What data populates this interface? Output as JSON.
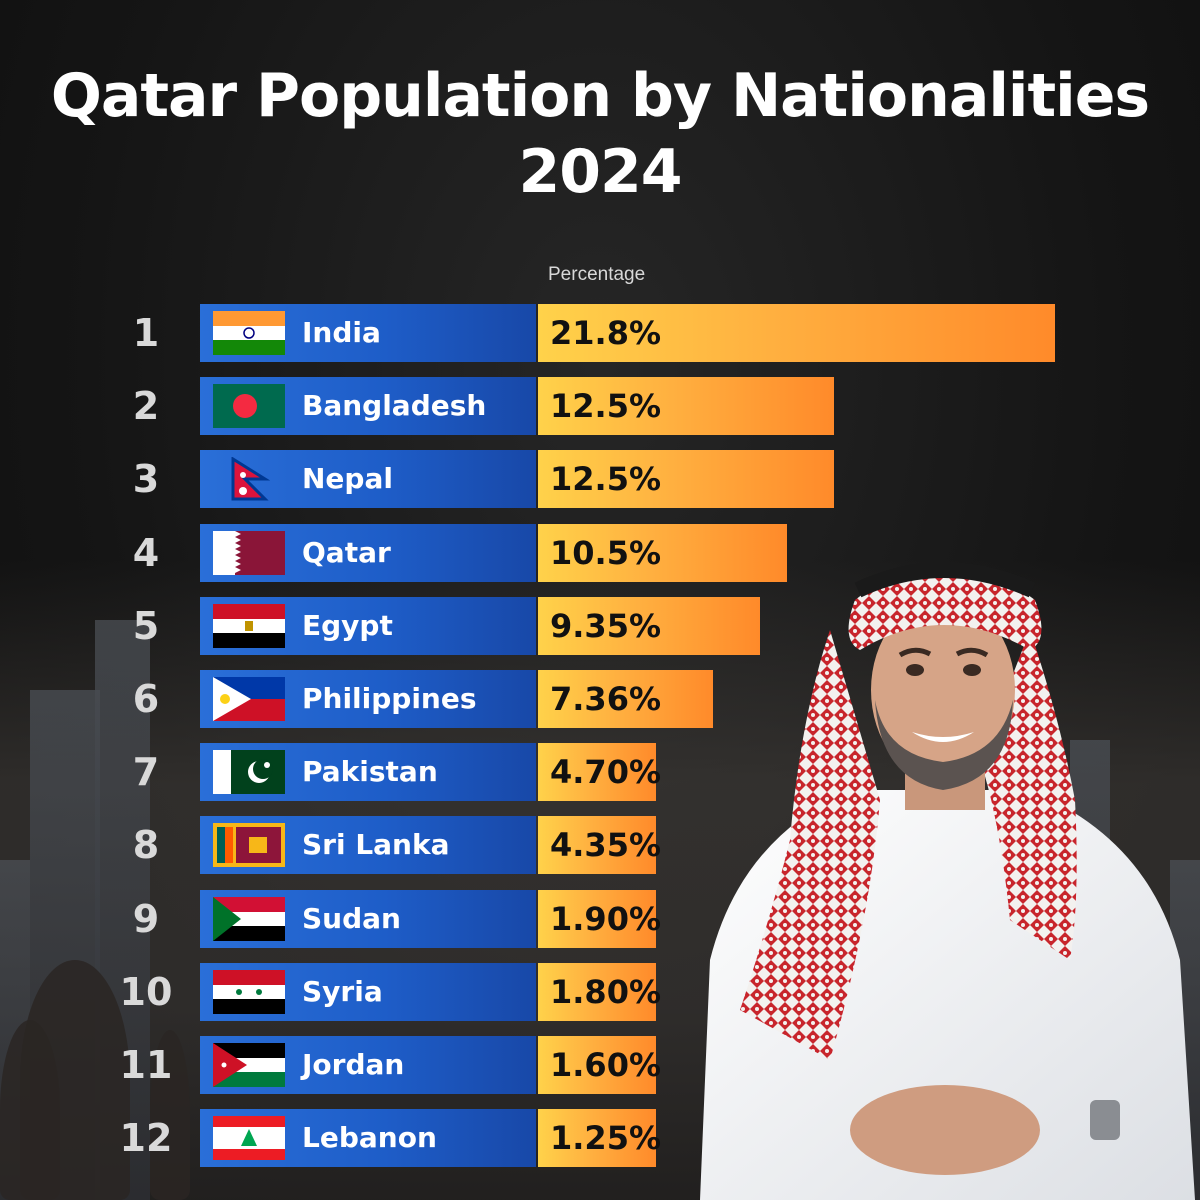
{
  "chart_data": {
    "type": "bar",
    "orientation": "horizontal",
    "title": "Qatar Population by Nationalities 2024",
    "value_label": "Percentage",
    "unit": "%",
    "xlim": [
      0,
      21.8
    ],
    "grid": false,
    "legend": "none",
    "ranks": [
      "1",
      "2",
      "3",
      "4",
      "5",
      "6",
      "7",
      "8",
      "9",
      "10",
      "11",
      "12"
    ],
    "categories": [
      "India",
      "Bangladesh",
      "Nepal",
      "Qatar",
      "Egypt",
      "Philippines",
      "Pakistan",
      "Sri Lanka",
      "Sudan",
      "Syria",
      "Jordan",
      "Lebanon"
    ],
    "values": [
      21.8,
      12.5,
      12.5,
      10.5,
      9.35,
      7.36,
      4.7,
      4.35,
      1.9,
      1.8,
      1.6,
      1.25
    ],
    "value_labels": [
      "21.8%",
      "12.5%",
      "12.5%",
      "10.5%",
      "9.35%",
      "7.36%",
      "4.70%",
      "4.35%",
      "1.90%",
      "1.80%",
      "1.60%",
      "1.25%"
    ],
    "flag_icons": [
      "india-flag-icon",
      "bangladesh-flag-icon",
      "nepal-flag-icon",
      "qatar-flag-icon",
      "egypt-flag-icon",
      "philippines-flag-icon",
      "pakistan-flag-icon",
      "sri-lanka-flag-icon",
      "sudan-flag-icon",
      "syria-flag-icon",
      "jordan-flag-icon",
      "lebanon-flag-icon"
    ]
  },
  "colors": {
    "name_box": "#1e5dc8",
    "bar_start": "#ffd24a",
    "bar_end": "#ff8a2a",
    "title": "#ffffff",
    "background": "#141414"
  }
}
